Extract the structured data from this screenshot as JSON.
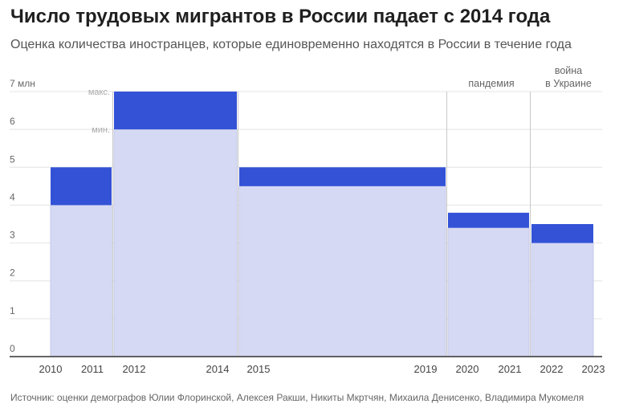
{
  "header": {
    "title": "Число трудовых мигрантов в России падает с 2014 года",
    "subtitle": "Оценка количества иностранцев, которые единовременно находятся в России в течение года"
  },
  "footer": {
    "source": "Источник: оценки демографов Юлии Флоринской, Алексея Ракши, Никиты Мкртчян, Михаила Денисенко, Владимира Мукомеля"
  },
  "chart_data": {
    "type": "bar",
    "unit_label": "7 млн",
    "ylim": [
      0,
      7
    ],
    "y_ticks": [
      "0",
      "1",
      "2",
      "3",
      "4",
      "5",
      "6",
      "7 млн"
    ],
    "x_tick_labels": [
      "2010",
      "2011",
      "2012",
      "2014",
      "2015",
      "2019",
      "2020",
      "2021",
      "2022",
      "2023"
    ],
    "x_tick_values": [
      2010,
      2011,
      2012,
      2014,
      2015,
      2019,
      2020,
      2021,
      2022,
      2023
    ],
    "grid": true,
    "bars": [
      {
        "x_start": 2010,
        "x_end": 2011,
        "min": 4.0,
        "max": 5.0
      },
      {
        "x_start": 2012,
        "x_end": 2014,
        "min": 6.0,
        "max": 7.0
      },
      {
        "x_start": 2015,
        "x_end": 2019,
        "min": 4.5,
        "max": 5.0
      },
      {
        "x_start": 2020,
        "x_end": 2021,
        "min": 3.4,
        "max": 3.8
      },
      {
        "x_start": 2022,
        "x_end": 2023,
        "min": 3.0,
        "max": 3.5
      }
    ],
    "range_labels": {
      "max": "макс.",
      "min": "мин."
    },
    "annotations": [
      {
        "text_lines": [
          "пандемия"
        ],
        "at_year": 2020
      },
      {
        "text_lines": [
          "война",
          "в Украине"
        ],
        "at_year": 2022
      }
    ],
    "colors": {
      "min_fill": "#d5d9f3",
      "max_fill": "#3352d6",
      "grid": "#e4e4e4",
      "axis": "#333333",
      "divider": "#c8c8c8",
      "label": "#666666",
      "range_label": "#aaaaaa"
    }
  }
}
